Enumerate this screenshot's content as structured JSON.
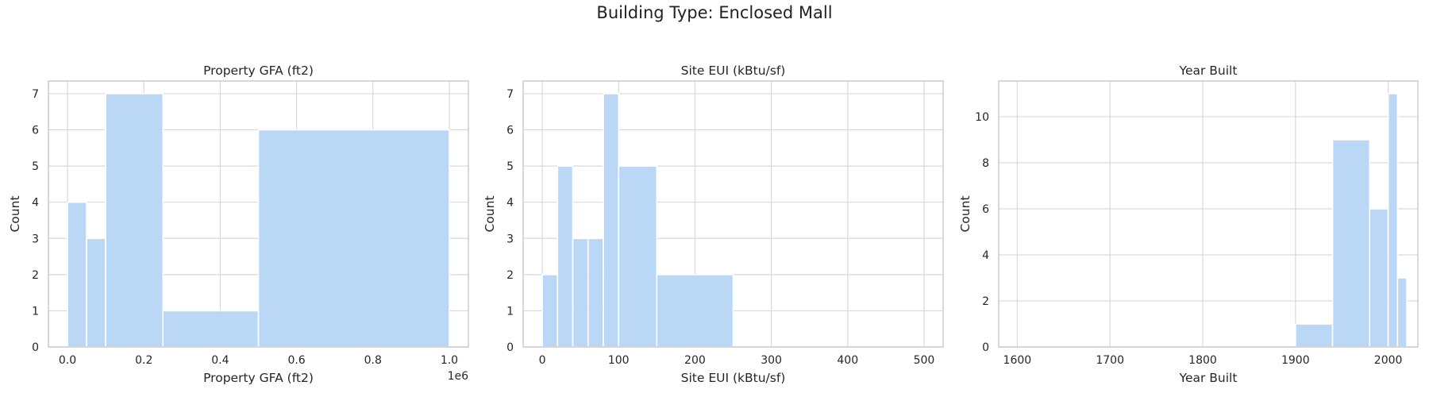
{
  "figure": {
    "suptitle": "Building Type: Enclosed Mall"
  },
  "colors": {
    "bar": "#b8d7f5",
    "grid": "#d9d9d9",
    "spine": "#cccccc"
  },
  "chart_data": [
    {
      "type": "bar",
      "title": "Property GFA (ft2)",
      "xlabel": "Property GFA (ft2)",
      "ylabel": "Count",
      "offset_text": "1e6",
      "xlim": [
        -0.05,
        1.05
      ],
      "ylim": [
        0,
        7.35
      ],
      "xticks": [
        0.0,
        0.2,
        0.4,
        0.6,
        0.8,
        1.0
      ],
      "xtick_labels": [
        "0.0",
        "0.2",
        "0.4",
        "0.6",
        "0.8",
        "1.0"
      ],
      "yticks": [
        0,
        1,
        2,
        3,
        4,
        5,
        6,
        7
      ],
      "ytick_labels": [
        "0",
        "1",
        "2",
        "3",
        "4",
        "5",
        "6",
        "7"
      ],
      "bins": [
        {
          "x0": 0.0,
          "x1": 0.05,
          "count": 4
        },
        {
          "x0": 0.05,
          "x1": 0.1,
          "count": 3
        },
        {
          "x0": 0.1,
          "x1": 0.25,
          "count": 7
        },
        {
          "x0": 0.25,
          "x1": 0.5,
          "count": 1
        },
        {
          "x0": 0.5,
          "x1": 1.0,
          "count": 6
        }
      ]
    },
    {
      "type": "bar",
      "title": "Site EUI (kBtu/sf)",
      "xlabel": "Site EUI (kBtu/sf)",
      "ylabel": "Count",
      "xlim": [
        -25,
        525
      ],
      "ylim": [
        0,
        7.35
      ],
      "xticks": [
        0,
        100,
        200,
        300,
        400,
        500
      ],
      "xtick_labels": [
        "0",
        "100",
        "200",
        "300",
        "400",
        "500"
      ],
      "yticks": [
        0,
        1,
        2,
        3,
        4,
        5,
        6,
        7
      ],
      "ytick_labels": [
        "0",
        "1",
        "2",
        "3",
        "4",
        "5",
        "6",
        "7"
      ],
      "bins": [
        {
          "x0": 0,
          "x1": 20,
          "count": 2
        },
        {
          "x0": 20,
          "x1": 40,
          "count": 5
        },
        {
          "x0": 40,
          "x1": 60,
          "count": 3
        },
        {
          "x0": 60,
          "x1": 80,
          "count": 3
        },
        {
          "x0": 80,
          "x1": 100,
          "count": 7
        },
        {
          "x0": 100,
          "x1": 150,
          "count": 5
        },
        {
          "x0": 150,
          "x1": 250,
          "count": 2
        }
      ]
    },
    {
      "type": "bar",
      "title": "Year Built",
      "xlabel": "Year Built",
      "ylabel": "Count",
      "xlim": [
        1580,
        2032
      ],
      "ylim": [
        0,
        11.55
      ],
      "xticks": [
        1600,
        1700,
        1800,
        1900,
        2000
      ],
      "xtick_labels": [
        "1600",
        "1700",
        "1800",
        "1900",
        "2000"
      ],
      "yticks": [
        0,
        2,
        4,
        6,
        8,
        10
      ],
      "ytick_labels": [
        "0",
        "2",
        "4",
        "6",
        "8",
        "10"
      ],
      "bins": [
        {
          "x0": 1900,
          "x1": 1940,
          "count": 1
        },
        {
          "x0": 1940,
          "x1": 1980,
          "count": 9
        },
        {
          "x0": 1980,
          "x1": 2000,
          "count": 6
        },
        {
          "x0": 2000,
          "x1": 2010,
          "count": 11
        },
        {
          "x0": 2010,
          "x1": 2020,
          "count": 3
        }
      ]
    }
  ]
}
